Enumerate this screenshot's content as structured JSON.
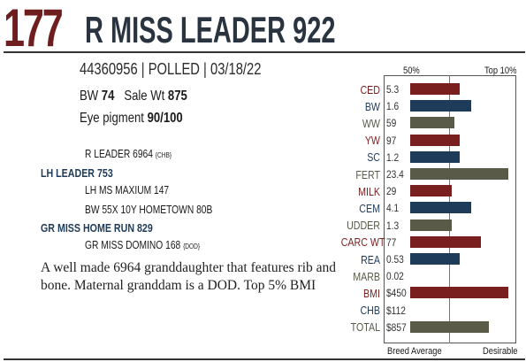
{
  "lot_number": "177",
  "animal_name": "R MISS LEADER 922",
  "identification": "44360956 | POLLED | 03/18/22",
  "bw_label": "BW",
  "bw_value": "74",
  "sale_wt_label": "Sale Wt",
  "sale_wt_value": "875",
  "eye_label": "Eye pigment",
  "eye_value": "90/100",
  "pedigree": {
    "sire_sire": "R LEADER 6964",
    "sire_sire_tag": "{CHB}",
    "sire": "LH LEADER 753",
    "sire_dam": "LH MS MAXIUM 147",
    "dam_sire": "BW 55X 10Y HOMETOWN 80B",
    "dam": "GR MISS HOME RUN 829",
    "dam_dam": "GR MISS DOMINO 168",
    "dam_dam_tag": "{DOD}"
  },
  "description": "A well made 6964 granddaughter that features rib and bone. Maternal granddam is a DOD. Top 5% BMI",
  "chart_data": {
    "type": "bar",
    "top_labels": [
      "50%",
      "Top 10%"
    ],
    "bottom_labels": [
      "Breed Average",
      "Desirable"
    ],
    "traits": [
      {
        "name": "CED",
        "value": "5.3",
        "bar": 0.5,
        "color": "#7a1f1f"
      },
      {
        "name": "BW",
        "value": "1.6",
        "bar": 0.62,
        "color": "#1f3b5a"
      },
      {
        "name": "WW",
        "value": "59",
        "bar": 0.45,
        "color": "#5a5a48"
      },
      {
        "name": "YW",
        "value": "97",
        "bar": 0.5,
        "color": "#7a1f1f"
      },
      {
        "name": "SC",
        "value": "1.2",
        "bar": 0.5,
        "color": "#1f3b5a"
      },
      {
        "name": "FERT",
        "value": "23.4",
        "bar": 1.0,
        "color": "#5a5a48"
      },
      {
        "name": "MILK",
        "value": "29",
        "bar": 0.42,
        "color": "#7a1f1f"
      },
      {
        "name": "CEM",
        "value": "4.1",
        "bar": 0.62,
        "color": "#1f3b5a"
      },
      {
        "name": "UDDER",
        "value": "1.3",
        "bar": 0.42,
        "color": "#5a5a48"
      },
      {
        "name": "CARC WT",
        "value": "77",
        "bar": 0.72,
        "color": "#7a1f1f"
      },
      {
        "name": "REA",
        "value": "0.53",
        "bar": 0.5,
        "color": "#1f3b5a"
      },
      {
        "name": "MARB",
        "value": "0.02",
        "bar": 0.0,
        "color": "#5a5a48"
      },
      {
        "name": "BMI",
        "value": "$450",
        "bar": 1.0,
        "color": "#7a1f1f"
      },
      {
        "name": "CHB",
        "value": "$112",
        "bar": 0.0,
        "color": "#1f3b5a"
      },
      {
        "name": "TOTAL",
        "value": "$857",
        "bar": 0.8,
        "color": "#5a5a48"
      }
    ],
    "label_colors": {
      "red": "#7a1f1f",
      "blue": "#1f3b5a",
      "gray": "#5a5a48"
    }
  }
}
